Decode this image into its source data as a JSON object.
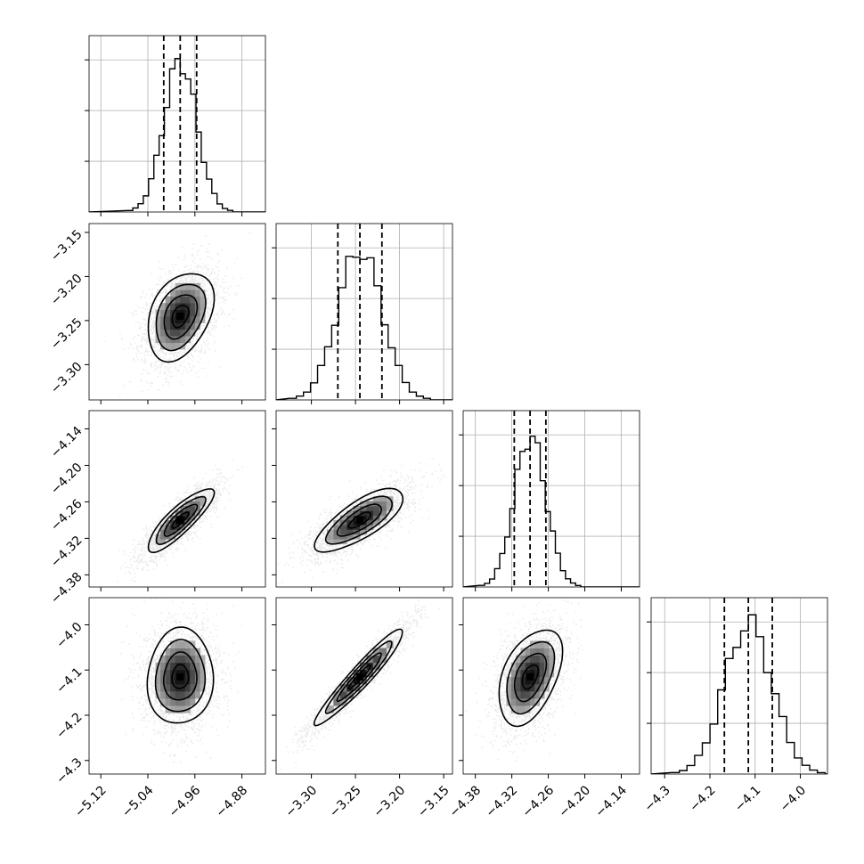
{
  "chart_data": {
    "type": "corner",
    "ticks": [
      [
        "−5.12",
        "−5.04",
        "−4.96",
        "−4.88"
      ],
      [
        "−3.30",
        "−3.25",
        "−3.20",
        "−3.15"
      ],
      [
        "−4.38",
        "−4.32",
        "−4.26",
        "−4.20",
        "−4.14"
      ],
      [
        "−4.3",
        "−4.2",
        "−4.1",
        "−4.0"
      ]
    ],
    "tick_values": [
      [
        -5.12,
        -5.04,
        -4.96,
        -4.88
      ],
      [
        -3.3,
        -3.25,
        -3.2,
        -3.15
      ],
      [
        -4.38,
        -4.32,
        -4.26,
        -4.2,
        -4.14
      ],
      [
        -4.3,
        -4.2,
        -4.1,
        -4.0
      ]
    ],
    "ranges": [
      [
        -5.14,
        -4.84
      ],
      [
        -3.34,
        -3.14
      ],
      [
        -4.4,
        -4.11
      ],
      [
        -4.33,
        -3.94
      ]
    ],
    "quantiles": [
      [
        -5.013,
        -4.985,
        -4.957
      ],
      [
        -3.27,
        -3.245,
        -3.22
      ],
      [
        -4.316,
        -4.29,
        -4.264
      ],
      [
        -4.168,
        -4.115,
        -4.062
      ]
    ],
    "means": [
      -4.985,
      -3.245,
      -4.29,
      -4.115
    ],
    "stds": [
      0.028,
      0.025,
      0.026,
      0.053
    ],
    "correlations": [
      [
        1,
        0.35,
        0.85,
        0.05
      ],
      [
        0.35,
        1,
        0.75,
        0.95
      ],
      [
        0.85,
        0.75,
        1,
        0.45
      ],
      [
        0.05,
        0.95,
        0.45,
        1
      ]
    ],
    "hist_bins": 20,
    "grid": true,
    "colors": {
      "line": "#000000",
      "scatter": "#808080",
      "grid": "#b0b0b0"
    }
  }
}
